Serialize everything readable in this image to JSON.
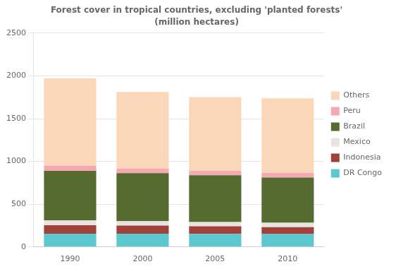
{
  "chart_data": {
    "type": "bar",
    "title": "Forest cover in tropical countries, excluding 'planted forests'",
    "subtitle": "(million hectares)",
    "categories": [
      "1990",
      "2000",
      "2005",
      "2010"
    ],
    "series": [
      {
        "name": "DR Congo",
        "color": "#5bc8d0",
        "values": [
          155,
          155,
          153,
          150
        ]
      },
      {
        "name": "Indonesia",
        "color": "#a0413a",
        "values": [
          100,
          95,
          88,
          82
        ]
      },
      {
        "name": "Mexico",
        "color": "#e8e4df",
        "values": [
          55,
          52,
          51,
          50
        ]
      },
      {
        "name": "Brazil",
        "color": "#556b2f",
        "values": [
          580,
          560,
          545,
          530
        ]
      },
      {
        "name": "Peru",
        "color": "#f4aab0",
        "values": [
          60,
          55,
          55,
          55
        ]
      },
      {
        "name": "Others",
        "color": "#fad7b8",
        "values": [
          1020,
          895,
          860,
          870
        ]
      }
    ],
    "stacked": true,
    "ylim": [
      0,
      2500
    ],
    "yticks": [
      0,
      500,
      1000,
      1500,
      2000,
      2500
    ],
    "grid": true,
    "legend": "right"
  }
}
